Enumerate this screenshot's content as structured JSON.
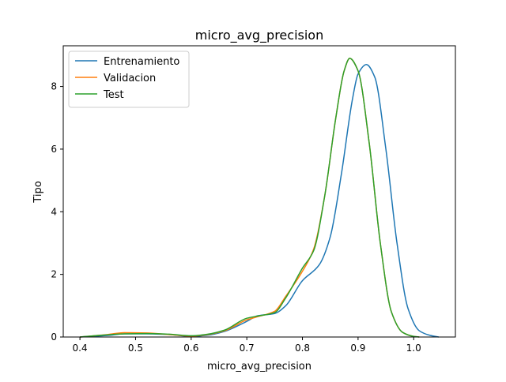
{
  "chart_data": {
    "type": "line",
    "title": "micro_avg_precision",
    "xlabel": "micro_avg_precision",
    "ylabel": "Tipo",
    "xlim": [
      0.37,
      1.075
    ],
    "ylim": [
      0,
      9.3
    ],
    "xticks": [
      0.4,
      0.5,
      0.6,
      0.7,
      0.8,
      0.9,
      1.0
    ],
    "xtick_labels": [
      "0.4",
      "0.5",
      "0.6",
      "0.7",
      "0.8",
      "0.9",
      "1.0"
    ],
    "yticks": [
      0,
      2,
      4,
      6,
      8
    ],
    "ytick_labels": [
      "0",
      "2",
      "4",
      "6",
      "8"
    ],
    "grid": false,
    "legend_position": "upper-left",
    "series": [
      {
        "name": "Entrenamiento",
        "color": "#1f77b4",
        "x": [
          0.4,
          0.45,
          0.48,
          0.52,
          0.56,
          0.6,
          0.63,
          0.66,
          0.7,
          0.72,
          0.75,
          0.77,
          0.8,
          0.83,
          0.85,
          0.87,
          0.89,
          0.9,
          0.915,
          0.93,
          0.95,
          0.97,
          0.99,
          1.01,
          1.03,
          1.045
        ],
        "y": [
          0.0,
          0.05,
          0.1,
          0.1,
          0.08,
          0.02,
          0.06,
          0.18,
          0.5,
          0.68,
          0.75,
          1.0,
          1.8,
          2.3,
          3.2,
          5.2,
          7.6,
          8.4,
          8.7,
          8.3,
          6.0,
          3.0,
          0.9,
          0.2,
          0.05,
          0.0
        ]
      },
      {
        "name": "Validacion",
        "color": "#ff7f0e",
        "x": [
          0.4,
          0.45,
          0.48,
          0.52,
          0.56,
          0.6,
          0.63,
          0.66,
          0.7,
          0.72,
          0.75,
          0.77,
          0.8,
          0.82,
          0.84,
          0.86,
          0.875,
          0.885,
          0.9,
          0.92,
          0.94,
          0.96,
          0.98,
          1.0,
          1.01
        ],
        "y": [
          0.0,
          0.08,
          0.14,
          0.13,
          0.08,
          0.03,
          0.08,
          0.2,
          0.55,
          0.65,
          0.82,
          1.3,
          2.1,
          2.8,
          4.5,
          7.0,
          8.5,
          8.9,
          8.5,
          6.2,
          3.0,
          0.8,
          0.15,
          0.02,
          0.0
        ]
      },
      {
        "name": "Test",
        "color": "#2ca02c",
        "x": [
          0.4,
          0.45,
          0.48,
          0.52,
          0.56,
          0.6,
          0.63,
          0.66,
          0.7,
          0.72,
          0.75,
          0.77,
          0.8,
          0.82,
          0.84,
          0.86,
          0.875,
          0.885,
          0.9,
          0.92,
          0.94,
          0.96,
          0.98,
          1.0,
          1.01
        ],
        "y": [
          0.0,
          0.07,
          0.1,
          0.11,
          0.09,
          0.04,
          0.09,
          0.22,
          0.6,
          0.67,
          0.78,
          1.25,
          2.2,
          2.75,
          4.5,
          7.0,
          8.5,
          8.9,
          8.5,
          6.2,
          3.0,
          0.8,
          0.15,
          0.02,
          0.0
        ]
      }
    ]
  }
}
